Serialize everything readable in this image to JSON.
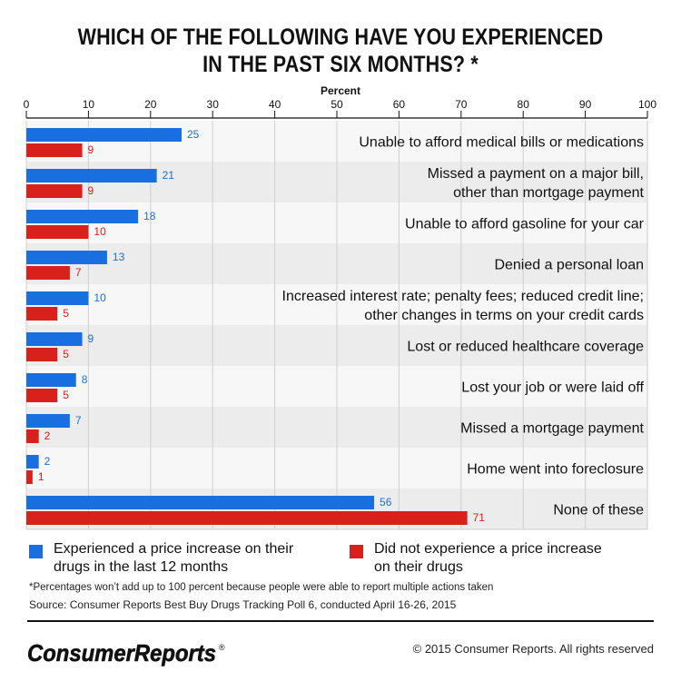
{
  "header": {
    "title_line1": "WHICH OF THE FOLLOWING HAVE YOU EXPERIENCED",
    "title_line2": "IN THE PAST SIX MONTHS? *"
  },
  "colors": {
    "series_a": "#1a6fe0",
    "series_b": "#d7211a",
    "band_light": "#f7f7f7",
    "band_dark": "#ececec"
  },
  "chart_data": {
    "type": "bar",
    "orientation": "horizontal",
    "title": "WHICH OF THE FOLLOWING HAVE YOU EXPERIENCED IN THE PAST SIX MONTHS? *",
    "xlabel": "Percent",
    "xlim": [
      0,
      100
    ],
    "xticks": [
      0,
      10,
      20,
      30,
      40,
      50,
      60,
      70,
      80,
      90,
      100
    ],
    "grid": true,
    "legend_position": "bottom",
    "categories": [
      [
        "Unable to afford medical bills or medications"
      ],
      [
        "Missed a payment on a major bill,",
        "other than mortgage payment"
      ],
      [
        "Unable to afford gasoline for your car"
      ],
      [
        "Denied a personal loan"
      ],
      [
        "Increased interest rate; penalty fees; reduced credit line;",
        "other changes in terms on your credit cards"
      ],
      [
        "Lost or reduced healthcare coverage"
      ],
      [
        "Lost your job or were laid off"
      ],
      [
        "Missed a mortgage payment"
      ],
      [
        "Home went into foreclosure"
      ],
      [
        "None of these"
      ]
    ],
    "series": [
      {
        "name": "Experienced a price increase on their drugs in the last 12 months",
        "color": "#1a6fe0",
        "values": [
          25,
          21,
          18,
          13,
          10,
          9,
          8,
          7,
          2,
          56
        ]
      },
      {
        "name": "Did not experience a price increase on their drugs",
        "color": "#d7211a",
        "values": [
          9,
          9,
          10,
          7,
          5,
          5,
          5,
          2,
          1,
          71
        ]
      }
    ]
  },
  "legend": {
    "a_line1": "Experienced a price increase on their",
    "a_line2": "drugs in the last 12 months",
    "b_line1": "Did not experience a price increase",
    "b_line2": "on their drugs"
  },
  "footer": {
    "note": "*Percentages won’t add up to 100 percent because people were able to report multiple actions taken",
    "source": "Source: Consumer Reports Best Buy Drugs Tracking Poll 6, conducted April 16-26, 2015",
    "logo_text": "ConsumerReports",
    "logo_mark": "®",
    "copyright": "© 2015 Consumer Reports. All rights reserved"
  }
}
